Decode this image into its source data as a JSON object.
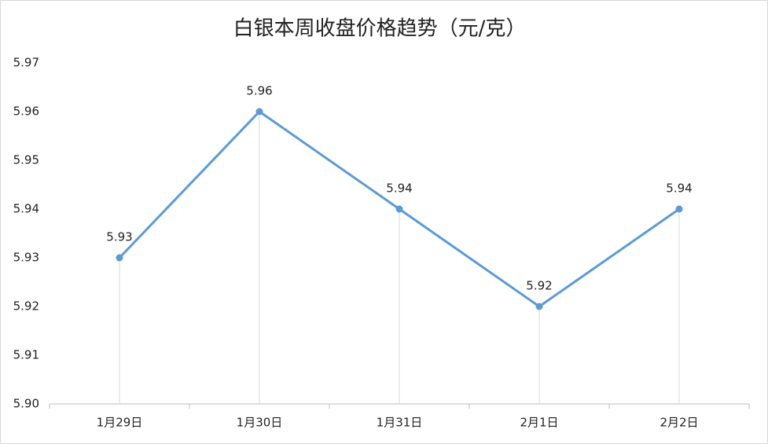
{
  "chart_data": {
    "type": "line",
    "title": "白银本周收盘价格趋势（元/克）",
    "categories": [
      "1月29日",
      "1月30日",
      "1月31日",
      "2月1日",
      "2月2日"
    ],
    "values": [
      5.93,
      5.96,
      5.94,
      5.92,
      5.94
    ],
    "color": "#5b9bd5",
    "ylim": [
      5.9,
      5.97
    ],
    "yticks": [
      {
        "value": 5.9,
        "label": "5.90"
      },
      5.91,
      5.92,
      5.93,
      5.94,
      5.95,
      5.96,
      5.97
    ],
    "drop_lines": true
  }
}
